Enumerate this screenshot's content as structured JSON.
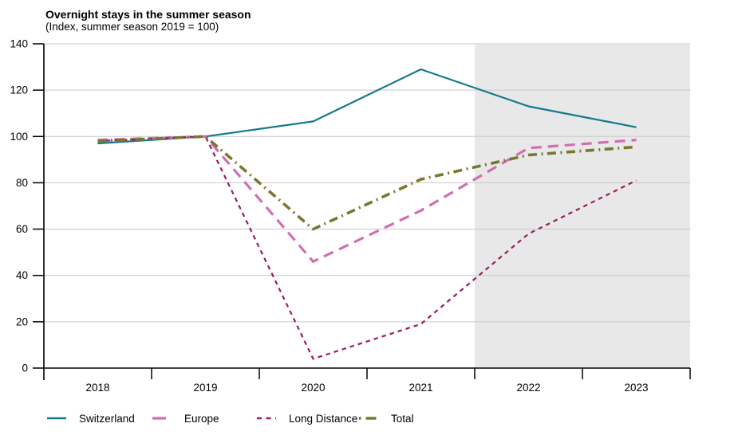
{
  "chart_data": {
    "type": "line",
    "title": "Overnight stays in the summer season",
    "subtitle": "(Index, summer season 2019 = 100)",
    "categories": [
      "2018",
      "2019",
      "2020",
      "2021",
      "2022",
      "2023"
    ],
    "series": [
      {
        "name": "Switzerland",
        "values": [
          97,
          100,
          106.5,
          129,
          113,
          104
        ],
        "color": "#15788c",
        "dash": "solid",
        "legend_dash": "solid",
        "width": 2.2
      },
      {
        "name": "Europe",
        "values": [
          98.5,
          100,
          46,
          68,
          95,
          98.5
        ],
        "color": "#d06fb0",
        "dash": "13 8",
        "legend_dash": "17 9",
        "width": 3.2
      },
      {
        "name": "Long Distance",
        "values": [
          98,
          100,
          4,
          19,
          58,
          81
        ],
        "color": "#9b1a63",
        "dash": "5.5 5",
        "legend_dash": "6 5.5",
        "width": 2.2
      },
      {
        "name": "Total",
        "values": [
          98,
          100,
          60,
          81.5,
          92,
          95.5
        ],
        "color": "#7a782c",
        "dash": "11 5.5 2 5.5",
        "legend_dash": "2.5 6 13 5",
        "width": 3.6
      }
    ],
    "ylim": [
      0,
      140
    ],
    "y_ticks": [
      0,
      20,
      40,
      60,
      80,
      100,
      120,
      140
    ],
    "xlabel": "",
    "ylabel": "",
    "grid": "horizontal",
    "legend_position": "bottom",
    "forecast_region": {
      "from_category_index": 4,
      "to_end": true,
      "color": "#e8e8e8"
    }
  },
  "colors": {
    "gridline": "#c9c9c9",
    "axis": "#000000",
    "background": "#ffffff",
    "forecast_shade": "#e8e8e8"
  }
}
